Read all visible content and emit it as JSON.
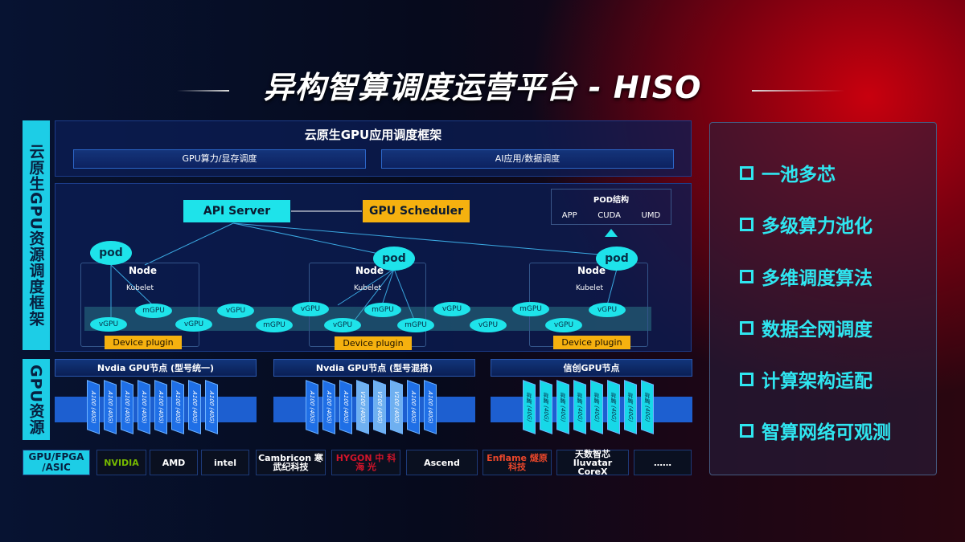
{
  "title": "异构智算调度运营平台 - HISO",
  "side_labels": {
    "framework": "云原生GPU资源调度框架",
    "resources": "GPU资源"
  },
  "framework": {
    "title": "云原生GPU应用调度框架",
    "sub1": "GPU算力/显存调度",
    "sub2": "AI应用/数据调度"
  },
  "diagram": {
    "api_server": "API Server",
    "scheduler": "GPU Scheduler",
    "pod_structure": {
      "title": "POD结构",
      "items": [
        "APP",
        "CUDA",
        "UMD"
      ]
    },
    "pod": "pod",
    "node": "Node",
    "kubelet": "Kubelet",
    "device_plugin": "Device plugin",
    "gpus": [
      "vGPU",
      "mGPU",
      "vGPU",
      "vGPU",
      "mGPU",
      "vGPU",
      "mGPU",
      "vGPU",
      "mGPU",
      "vGPU",
      "vGPU",
      "mGPU",
      "vGPU",
      "vGPU"
    ]
  },
  "gpu_groups": [
    {
      "title": "Nvdia GPU节点 (型号统一)",
      "chips": [
        "A100 (40G)",
        "A100 (40G)",
        "A100 (40G)",
        "A100 (40G)",
        "A100 (40G)",
        "A100 (40G)",
        "A100 (40G)",
        "A100 (40G)"
      ]
    },
    {
      "title": "Nvdia GPU节点 (型号混搭)",
      "chips": [
        "A100 (40G)",
        "A100 (40G)",
        "A100 (40G)",
        "V100 (40G)",
        "V100 (40G)",
        "V100 (40G)",
        "A100 (40G)",
        "A100 (40G)"
      ]
    },
    {
      "title": "信创GPU节点",
      "chips": [
        "昇腾 (40G)",
        "昇腾 (40G)",
        "昇腾 (40G)",
        "昇腾 (40G)",
        "昇腾 (40G)",
        "昇腾 (40G)",
        "昇腾 (40G)",
        "昇腾 (40G)"
      ]
    }
  ],
  "vendors": {
    "label": "GPU/FPGA /ASIC",
    "items": [
      "NVIDIA",
      "AMD",
      "intel",
      "Cambricon 寒武纪科技",
      "HYGON 中 科 海 光",
      "Ascend",
      "Enflame 燧原科技",
      "天数智芯 Iluvatar CoreX",
      "……"
    ]
  },
  "features": [
    "一池多芯",
    "多级算力池化",
    "多维调度算法",
    "数据全网调度",
    "计算架构适配",
    "智算网络可观测"
  ],
  "colors": {
    "accent": "#1ee3ea",
    "highlight": "#f5b10f",
    "panel": "#0c1e55"
  }
}
